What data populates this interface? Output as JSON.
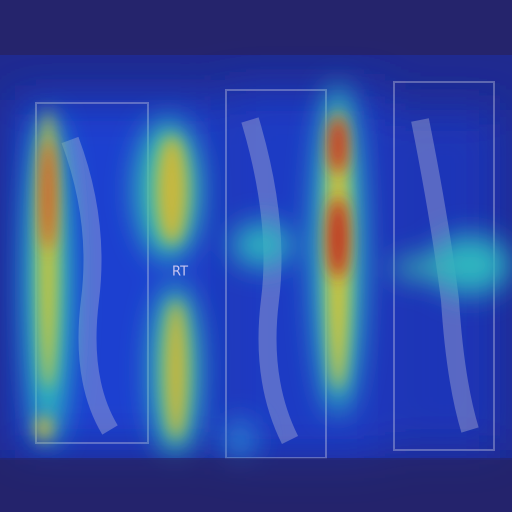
{
  "image": {
    "label": "RT"
  }
}
